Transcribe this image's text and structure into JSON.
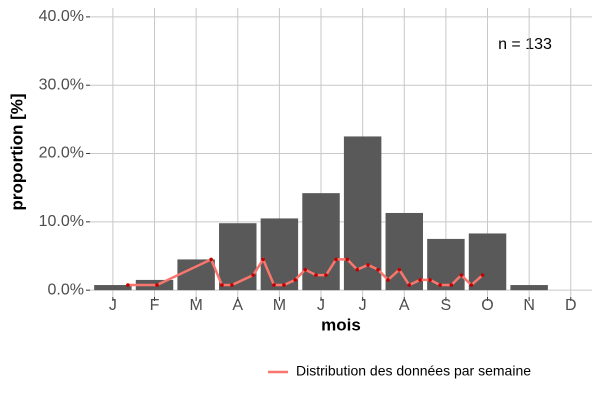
{
  "chart_data": {
    "type": "bar",
    "annotation": "n = 133",
    "x_label": "mois",
    "y_label": "proportion [%]",
    "x": [
      1,
      2,
      3,
      4,
      5,
      6,
      7,
      8,
      9,
      10,
      11,
      12
    ],
    "values": [
      0.75,
      1.5,
      4.5,
      9.8,
      10.5,
      14.2,
      22.5,
      11.3,
      7.5,
      8.3,
      0.75,
      0
    ],
    "color": "#595959",
    "xlim": [
      0.45,
      12.51
    ],
    "xticks": [
      {
        "value": 1,
        "label": "J"
      },
      {
        "value": 2,
        "label": "F"
      },
      {
        "value": 3,
        "label": "M"
      },
      {
        "value": 4,
        "label": "A"
      },
      {
        "value": 5,
        "label": "M"
      },
      {
        "value": 6,
        "label": "J"
      },
      {
        "value": 7,
        "label": "J"
      },
      {
        "value": 8,
        "label": "A"
      },
      {
        "value": 9,
        "label": "S"
      },
      {
        "value": 10,
        "label": "O"
      },
      {
        "value": 11,
        "label": "N"
      },
      {
        "value": 12,
        "label": "D"
      }
    ],
    "ylim": [
      -1,
      41.3
    ],
    "yticks": [
      {
        "value": 0,
        "label": "0.0%"
      },
      {
        "value": 10,
        "label": "10.0%"
      },
      {
        "value": 20,
        "label": "20.0%"
      },
      {
        "value": 30,
        "label": "30.0%"
      },
      {
        "value": 40,
        "label": "40.0%"
      }
    ],
    "grid": true,
    "legend": "bottom-right",
    "series": [
      {
        "type": "line",
        "name": "Distribution des données par semaine",
        "color": "#f8766d",
        "point_color": "#c00000",
        "x": [
          1.36,
          2.06,
          3.36,
          3.62,
          3.86,
          4.37,
          4.61,
          4.87,
          5.11,
          5.38,
          5.62,
          5.88,
          6.12,
          6.36,
          6.63,
          6.87,
          7.13,
          7.37,
          7.61,
          7.88,
          8.12,
          8.38,
          8.62,
          8.86,
          9.13,
          9.37,
          9.61,
          9.88
        ],
        "values": [
          0.75,
          0.75,
          4.5,
          0.75,
          0.75,
          2.2,
          4.5,
          0.75,
          0.75,
          1.5,
          3,
          2.2,
          2.2,
          4.5,
          4.5,
          3,
          3.7,
          3,
          1.5,
          3,
          0.75,
          1.5,
          1.5,
          0.75,
          0.75,
          2.2,
          0.75,
          2.2
        ]
      }
    ]
  }
}
